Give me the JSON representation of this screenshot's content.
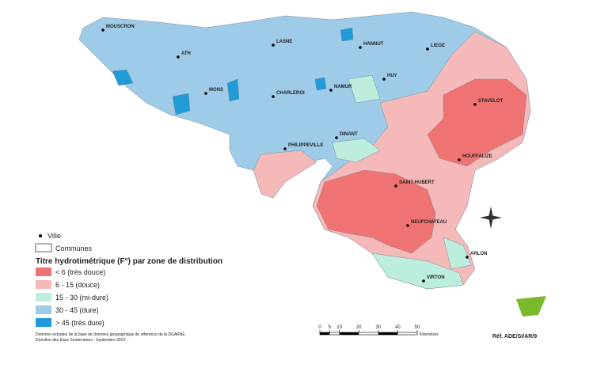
{
  "map": {
    "cities": [
      "MOUSCRON",
      "ATH",
      "LASNE",
      "HANNUT",
      "LIEGE",
      "MONS",
      "CHARLEROI",
      "NAMUR",
      "HUY",
      "STAVELOT",
      "DINANT",
      "PHILIPPEVILLE",
      "HOUFFALIZE",
      "SAINT-HUBERT",
      "NEUFCHATEAU",
      "ARLON",
      "VIRTON"
    ],
    "legend": {
      "city": "Ville",
      "communes": "Communes",
      "title": "Titre hydrotimétrique (F°) par zone de distribution",
      "classes": [
        {
          "label": "< 6 (très douce)",
          "color": "#f07373"
        },
        {
          "label": "6 - 15 (douce)",
          "color": "#f6b9b9"
        },
        {
          "label": "15 - 30 (mi-dure)",
          "color": "#bdeedd"
        },
        {
          "label": "30 - 45 (dure)",
          "color": "#9ecbe8"
        },
        {
          "label": "> 45 (très dure)",
          "color": "#1f9bd7"
        }
      ]
    },
    "scale_bar": {
      "ticks": [
        0,
        5,
        10,
        20,
        30,
        40,
        50
      ],
      "unit": "Kilomètres"
    },
    "source": [
      "Données extraites de la base de données géographique de référence de la DGARNE",
      "Direction des Eaux Souterraines - Septembre 2013"
    ],
    "reference": "Réf. ADE/SI/AR/9"
  }
}
